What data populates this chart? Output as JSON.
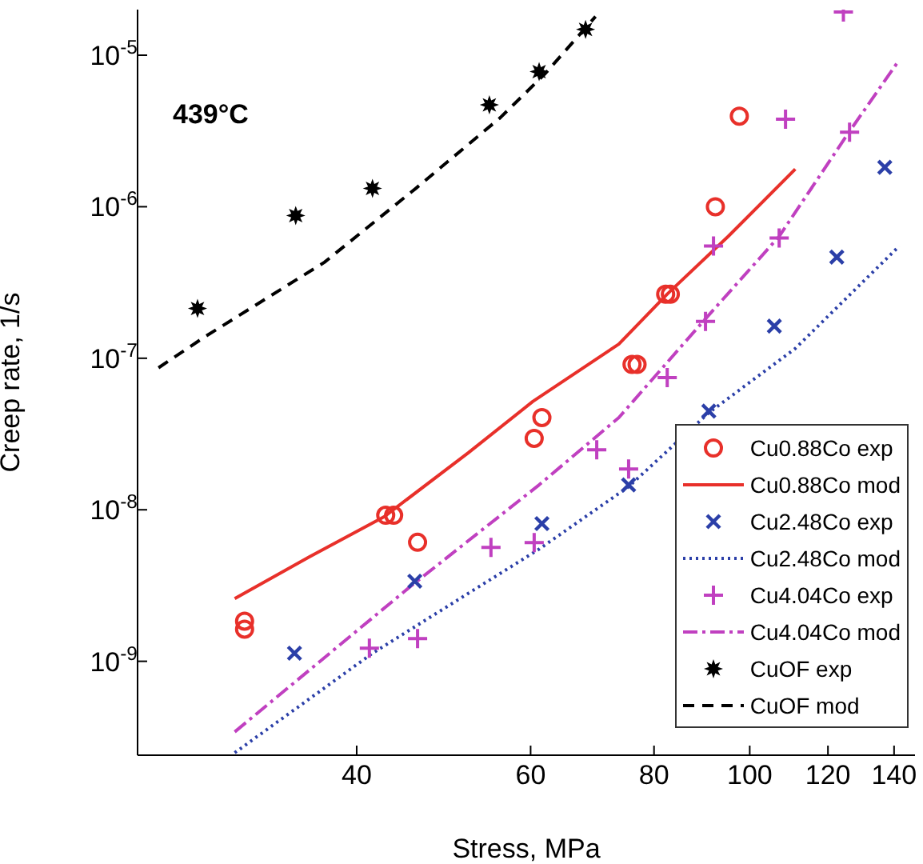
{
  "chart_data": {
    "type": "scatter",
    "xlabel": "Stress, MPa",
    "ylabel": "Creep rate, 1/s",
    "log": "xy",
    "xlim": [
      24,
      147
    ],
    "xticks": [
      40,
      60,
      80,
      100,
      120,
      140
    ],
    "ylim": [
      2.4e-10,
      2e-05
    ],
    "yticks": [
      {
        "value": 1e-09,
        "label": "10$^{-9}$"
      },
      {
        "value": 1e-08,
        "label": "10$^{-8}$"
      },
      {
        "value": 1e-07,
        "label": "10$^{-7}$"
      },
      {
        "value": 1e-06,
        "label": "10$^{-6}$"
      },
      {
        "value": 1e-05,
        "label": "10$^{-5}$"
      }
    ],
    "grid": false,
    "legend": "bottom right",
    "annotations": [
      "439°C"
    ],
    "series": [
      {
        "name": "Cu0.88Co exp",
        "marker": "circle",
        "color": "#e8302a",
        "x": [
          30.8,
          30.8,
          42.8,
          43.6,
          46.1,
          60.5,
          61.6,
          76.0,
          76.9,
          82.2,
          83.1,
          92.3,
          97.6
        ],
        "values": [
          1.84e-09,
          1.63e-09,
          9.2e-09,
          9.2e-09,
          6.1e-09,
          2.96e-08,
          4.06e-08,
          9.1e-08,
          9.1e-08,
          2.65e-07,
          2.65e-07,
          1e-06,
          3.96e-06
        ]
      },
      {
        "name": "Cu0.88Co mod",
        "type": "line",
        "line_style": "solid",
        "color": "#e8302a",
        "x": [
          30.1,
          35.8,
          42.6,
          51.9,
          60.3,
          73.7,
          82.5,
          95.1,
          111.2
        ],
        "values": [
          2.59e-09,
          4.88e-09,
          8.95e-09,
          2.38e-08,
          5.18e-08,
          1.24e-07,
          2.65e-07,
          6.37e-07,
          1.77e-06
        ]
      },
      {
        "name": "Cu2.48Co exp",
        "marker": "x",
        "color": "#2b3fa8",
        "x": [
          34.6,
          45.8,
          61.6,
          75.4,
          90.9,
          105.9,
          122.5,
          137.0
        ],
        "values": [
          1.13e-09,
          3.38e-09,
          8.1e-09,
          1.46e-08,
          4.48e-08,
          1.63e-07,
          4.65e-07,
          1.82e-06
        ]
      },
      {
        "name": "Cu2.48Co mod",
        "type": "line",
        "line_style": "dotted",
        "color": "#2b3fa8",
        "x": [
          30.1,
          41.5,
          61.2,
          75.4,
          90.9,
          111.2,
          141.7
        ],
        "values": [
          2.49e-10,
          1.13e-09,
          5.5e-09,
          1.42e-08,
          4.37e-08,
          1.16e-07,
          5.5e-07
        ]
      },
      {
        "name": "Cu4.04Co exp",
        "marker": "cross",
        "color": "#c040c0",
        "x": [
          41.2,
          46.1,
          54.7,
          60.5,
          70.0,
          75.4,
          82.5,
          90.2,
          91.9,
          107.1,
          108.7,
          126.2,
          124.4
        ],
        "values": [
          1.22e-09,
          1.41e-09,
          5.64e-09,
          6.07e-09,
          2.49e-08,
          1.86e-08,
          7.46e-08,
          1.75e-07,
          5.5e-07,
          6.22e-07,
          3.78e-06,
          3.1e-06,
          1.93e-05
        ]
      },
      {
        "name": "Cu4.04Co mod",
        "type": "line",
        "line_style": "dashdot",
        "color": "#c040c0",
        "x": [
          30.1,
          45.4,
          61.2,
          73.7,
          89.7,
          107.1,
          125.7,
          141.7
        ],
        "values": [
          3.42e-10,
          3.14e-09,
          1.46e-08,
          4.06e-08,
          1.75e-07,
          6.37e-07,
          3.03e-06,
          9.3e-06
        ]
      },
      {
        "name": "CuOF exp",
        "marker": "star",
        "color": "#000000",
        "x": [
          27.6,
          34.7,
          41.5,
          54.5,
          61.2,
          68.2
        ],
        "values": [
          2.13e-07,
          8.75e-07,
          1.32e-06,
          4.7e-06,
          7.8e-06,
          1.48e-05
        ]
      },
      {
        "name": "CuOF mod",
        "type": "line",
        "line_style": "dashed",
        "color": "#000000",
        "x": [
          25.2,
          28.0,
          37.1,
          45.9,
          55.9,
          62.0,
          69.8
        ],
        "values": [
          8.65e-08,
          1.37e-07,
          4.3e-07,
          1.32e-06,
          3.87e-06,
          7.5e-06,
          1.8e-05
        ]
      }
    ]
  }
}
